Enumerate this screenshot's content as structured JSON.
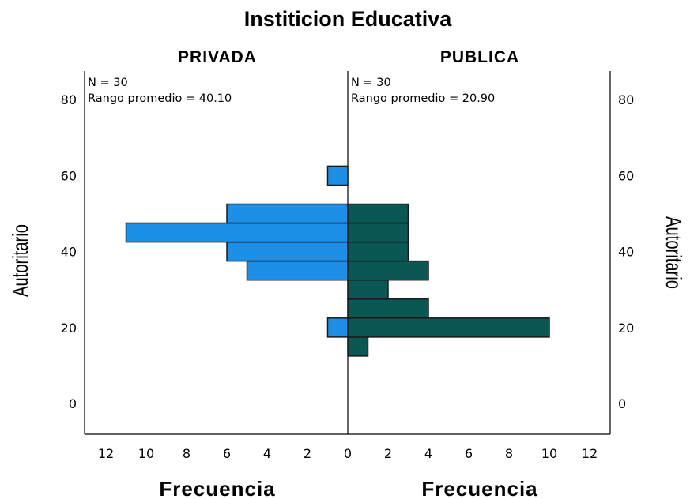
{
  "chart_data": {
    "type": "bar",
    "orientation": "horizontal",
    "title": "Institicion Educativa",
    "ylabel": "Autoritario",
    "xlabel": "Frecuencia",
    "ylim": [
      -8,
      88
    ],
    "yticks": [
      0,
      20,
      40,
      60,
      80
    ],
    "xlim": [
      0,
      13
    ],
    "xticks": [
      12,
      10,
      8,
      6,
      4,
      2,
      0
    ],
    "bin_width": 5,
    "panels": [
      {
        "name": "PRIVADA",
        "side": "left",
        "color": "#1e8fe6",
        "n_label": "N = 30",
        "rank_label": "Rango promedio = 40.10",
        "bars": [
          {
            "y": 20,
            "value": 1
          },
          {
            "y": 35,
            "value": 5
          },
          {
            "y": 40,
            "value": 6
          },
          {
            "y": 45,
            "value": 11
          },
          {
            "y": 50,
            "value": 6
          },
          {
            "y": 60,
            "value": 1
          }
        ]
      },
      {
        "name": "PUBLICA",
        "side": "right",
        "color": "#0b5754",
        "n_label": "N = 30",
        "rank_label": "Rango promedio = 20.90",
        "bars": [
          {
            "y": 15,
            "value": 1
          },
          {
            "y": 20,
            "value": 10
          },
          {
            "y": 25,
            "value": 4
          },
          {
            "y": 30,
            "value": 2
          },
          {
            "y": 35,
            "value": 4
          },
          {
            "y": 40,
            "value": 3
          },
          {
            "y": 45,
            "value": 3
          },
          {
            "y": 50,
            "value": 3
          }
        ]
      }
    ]
  }
}
